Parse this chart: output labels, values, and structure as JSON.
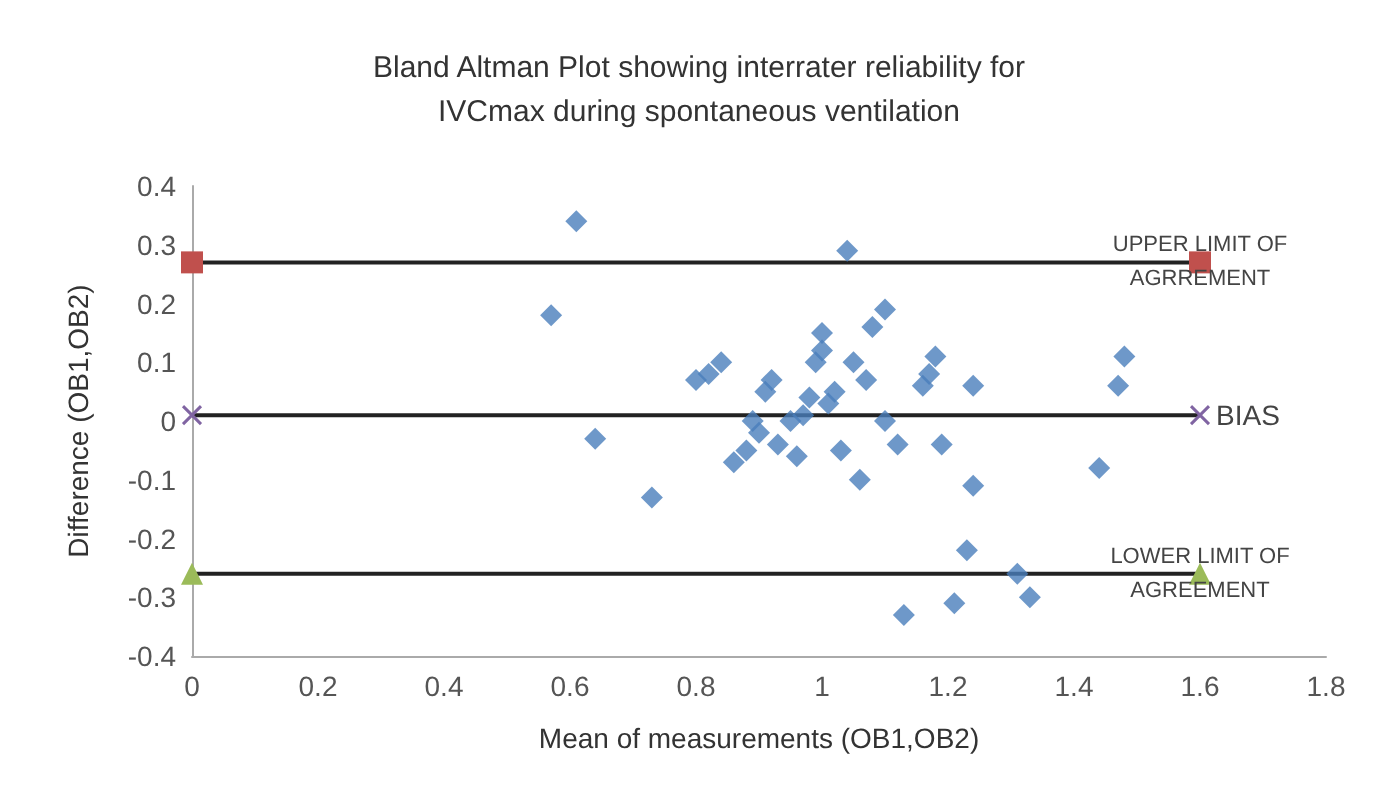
{
  "chart_data": {
    "type": "scatter",
    "title": "Bland Altman Plot showing interrater reliability for\nIVCmax during spontaneous ventilation",
    "xlabel": "Mean of measurements (OB1,OB2)",
    "ylabel": "Difference (OB1,OB2)",
    "xlim": [
      0,
      1.8
    ],
    "xticks": [
      0,
      0.2,
      0.4,
      0.6,
      0.8,
      1,
      1.2,
      1.4,
      1.6,
      1.8
    ],
    "ylim": [
      -0.4,
      0.4
    ],
    "yticks": [
      -0.4,
      -0.3,
      -0.2,
      -0.1,
      0,
      0.1,
      0.2,
      0.3,
      0.4
    ],
    "grid": false,
    "series": [
      {
        "color": "#4a7ebb",
        "marker": "diamond",
        "x": [
          0.57,
          0.61,
          0.64,
          0.73,
          0.8,
          0.82,
          0.84,
          0.86,
          0.88,
          0.89,
          0.9,
          0.91,
          0.92,
          0.93,
          0.95,
          0.96,
          0.97,
          0.98,
          0.99,
          1.0,
          1.0,
          1.01,
          1.02,
          1.03,
          1.04,
          1.05,
          1.06,
          1.07,
          1.08,
          1.1,
          1.1,
          1.12,
          1.13,
          1.16,
          1.17,
          1.18,
          1.19,
          1.21,
          1.23,
          1.24,
          1.24,
          1.31,
          1.33,
          1.44,
          1.47,
          1.48
        ],
        "values": [
          0.18,
          0.34,
          -0.03,
          -0.13,
          0.07,
          0.08,
          0.1,
          -0.07,
          -0.05,
          0.0,
          -0.02,
          0.05,
          0.07,
          -0.04,
          0.0,
          -0.06,
          0.01,
          0.04,
          0.1,
          0.15,
          0.12,
          0.03,
          0.05,
          -0.05,
          0.29,
          0.1,
          -0.1,
          0.07,
          0.16,
          0.19,
          0.0,
          -0.04,
          -0.33,
          0.06,
          0.08,
          0.11,
          -0.04,
          -0.31,
          -0.22,
          0.06,
          -0.11,
          -0.26,
          -0.3,
          -0.08,
          0.06,
          0.11
        ]
      },
      {
        "type": "line",
        "name": "UPPER LIMIT OF\nAGRREMENT",
        "color": "#c0504d",
        "marker": "square",
        "x": [
          0,
          1.6
        ],
        "values": [
          0.27,
          0.27
        ]
      },
      {
        "type": "line",
        "name": "BIAS",
        "color": "#8064a2",
        "marker": "cross",
        "x": [
          0,
          1.6
        ],
        "values": [
          0.01,
          0.01
        ]
      },
      {
        "type": "line",
        "name": "LOWER LIMIT OF\nAGREEMENT",
        "color": "#9bbb59",
        "marker": "triangle",
        "x": [
          0,
          1.6
        ],
        "values": [
          -0.26,
          -0.26
        ]
      }
    ]
  }
}
